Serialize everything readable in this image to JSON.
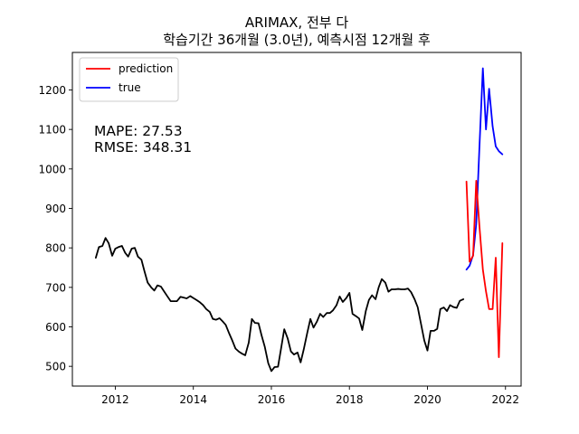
{
  "title_line1": "ARIMAX, 전부 다",
  "title_line2": "학습기간 36개월 (3.0년), 예측시점 12개월 후",
  "annotation_mape": "MAPE: 27.53",
  "annotation_rmse": "RMSE: 348.31",
  "colors": {
    "prediction": "#ff0000",
    "true": "#0000ff",
    "history": "#000000"
  },
  "chart_data": {
    "type": "line",
    "title": "ARIMAX, 전부 다\n학습기간 36개월 (3.0년), 예측시점 12개월 후",
    "xlabel": "",
    "ylabel": "",
    "xlim": [
      2010.9,
      2022.4
    ],
    "ylim": [
      450,
      1295
    ],
    "x_ticks": [
      2012,
      2014,
      2016,
      2018,
      2020,
      2022
    ],
    "x_tick_labels": [
      "2012",
      "2014",
      "2016",
      "2018",
      "2020",
      "2022"
    ],
    "y_ticks": [
      500,
      600,
      700,
      800,
      900,
      1000,
      1100,
      1200
    ],
    "y_tick_labels": [
      "500",
      "600",
      "700",
      "800",
      "900",
      "1000",
      "1100",
      "1200"
    ],
    "grid": false,
    "legend": {
      "placement": "top-left",
      "entries": [
        "prediction",
        "true"
      ]
    },
    "series": [
      {
        "name": "prediction",
        "color": "#ff0000",
        "x": [
          2021.0,
          2021.08,
          2021.17,
          2021.25,
          2021.33,
          2021.42,
          2021.5,
          2021.58,
          2021.67,
          2021.75,
          2021.83,
          2021.92
        ],
        "y": [
          968,
          765,
          780,
          970,
          858,
          745,
          690,
          645,
          645,
          775,
          523,
          812
        ]
      },
      {
        "name": "true",
        "color": "#0000ff",
        "x": [
          2021.0,
          2021.08,
          2021.17,
          2021.25,
          2021.33,
          2021.42,
          2021.5,
          2021.58,
          2021.67,
          2021.75,
          2021.83,
          2021.92
        ],
        "y": [
          745,
          755,
          782,
          860,
          1050,
          1255,
          1100,
          1203,
          1108,
          1057,
          1045,
          1037
        ]
      },
      {
        "name": "",
        "color": "#000000",
        "x": [
          2011.5,
          2011.58,
          2011.67,
          2011.75,
          2011.83,
          2011.92,
          2012.0,
          2012.08,
          2012.17,
          2012.25,
          2012.33,
          2012.42,
          2012.5,
          2012.58,
          2012.67,
          2012.75,
          2012.83,
          2012.92,
          2013.0,
          2013.08,
          2013.17,
          2013.25,
          2013.33,
          2013.42,
          2013.5,
          2013.58,
          2013.67,
          2013.75,
          2013.83,
          2013.92,
          2014.0,
          2014.08,
          2014.17,
          2014.25,
          2014.33,
          2014.42,
          2014.5,
          2014.58,
          2014.67,
          2014.75,
          2014.83,
          2014.92,
          2015.0,
          2015.08,
          2015.17,
          2015.25,
          2015.33,
          2015.42,
          2015.5,
          2015.58,
          2015.67,
          2015.75,
          2015.83,
          2015.92,
          2016.0,
          2016.08,
          2016.17,
          2016.25,
          2016.33,
          2016.42,
          2016.5,
          2016.58,
          2016.67,
          2016.75,
          2016.83,
          2016.92,
          2017.0,
          2017.08,
          2017.17,
          2017.25,
          2017.33,
          2017.42,
          2017.5,
          2017.58,
          2017.67,
          2017.75,
          2017.83,
          2017.92,
          2018.0,
          2018.08,
          2018.17,
          2018.25,
          2018.33,
          2018.42,
          2018.5,
          2018.58,
          2018.67,
          2018.75,
          2018.83,
          2018.92,
          2019.0,
          2019.08,
          2019.17,
          2019.25,
          2019.33,
          2019.42,
          2019.5,
          2019.58,
          2019.67,
          2019.75,
          2019.83,
          2019.92,
          2020.0,
          2020.08,
          2020.17,
          2020.25,
          2020.33,
          2020.42,
          2020.5,
          2020.58,
          2020.67,
          2020.75,
          2020.83,
          2020.92
        ],
        "y": [
          775,
          802,
          805,
          825,
          812,
          780,
          798,
          802,
          805,
          788,
          778,
          798,
          800,
          778,
          770,
          740,
          712,
          700,
          692,
          705,
          702,
          690,
          678,
          665,
          665,
          665,
          676,
          674,
          672,
          678,
          673,
          668,
          662,
          655,
          645,
          638,
          620,
          618,
          622,
          614,
          605,
          583,
          565,
          545,
          537,
          532,
          528,
          560,
          620,
          610,
          609,
          578,
          550,
          508,
          488,
          498,
          499,
          546,
          594,
          570,
          538,
          530,
          535,
          510,
          543,
          585,
          620,
          598,
          614,
          633,
          625,
          635,
          635,
          642,
          655,
          677,
          663,
          673,
          686,
          633,
          627,
          621,
          592,
          640,
          668,
          680,
          670,
          700,
          721,
          712,
          689,
          695,
          695,
          696,
          695,
          695,
          697,
          688,
          670,
          650,
          610,
          565,
          540,
          590,
          590,
          595,
          645,
          649,
          640,
          655,
          650,
          648,
          666,
          670
        ]
      }
    ]
  }
}
